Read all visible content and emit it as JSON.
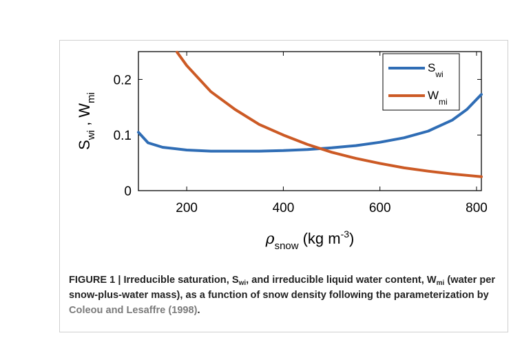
{
  "chart_data": {
    "type": "line",
    "xlabel": {
      "symbol": "ρ",
      "sub": "snow",
      "unit_pre": "(kg m",
      "unit_sup": "-3",
      "unit_post": ")"
    },
    "ylabel": {
      "s": "S",
      "s_sub": "wi",
      "sep": " , ",
      "w": "W",
      "w_sub": "mi"
    },
    "xlim": [
      100,
      810
    ],
    "ylim": [
      0,
      0.25
    ],
    "xticks": [
      200,
      400,
      600,
      800
    ],
    "yticks": [
      0,
      0.1,
      0.2
    ],
    "xtick_labels": [
      "200",
      "400",
      "600",
      "800"
    ],
    "ytick_labels": [
      "0",
      "0.1",
      "0.2"
    ],
    "legend_position": "top-right",
    "series": [
      {
        "name": "Swi",
        "label": "S",
        "label_sub": "wi",
        "color": "#2f6db5",
        "x": [
          100,
          120,
          150,
          200,
          250,
          300,
          350,
          400,
          450,
          500,
          550,
          600,
          650,
          700,
          750,
          780,
          810
        ],
        "y": [
          0.105,
          0.086,
          0.078,
          0.073,
          0.071,
          0.071,
          0.071,
          0.072,
          0.074,
          0.077,
          0.081,
          0.087,
          0.095,
          0.107,
          0.127,
          0.146,
          0.173
        ]
      },
      {
        "name": "Wmi",
        "label": "W",
        "label_sub": "mi",
        "color": "#cc5a25",
        "x": [
          180,
          200,
          250,
          300,
          350,
          400,
          450,
          500,
          550,
          600,
          650,
          700,
          750,
          810
        ],
        "y": [
          0.249,
          0.225,
          0.178,
          0.146,
          0.119,
          0.1,
          0.083,
          0.069,
          0.058,
          0.049,
          0.041,
          0.035,
          0.03,
          0.025
        ]
      }
    ]
  },
  "caption": {
    "lead": "FIGURE 1 | Irreducible saturation, S",
    "s_sub": "wi",
    "mid": ", and irreducible liquid water content, W",
    "w_sub": "mi",
    "rest": " (water per snow-plus-water mass), as a function of snow density following the parameterization by ",
    "citation": "Coleou and Lesaffre (1998)",
    "end": "."
  },
  "colors": {
    "swi": "#2f6db5",
    "wmi": "#cc5a25"
  }
}
